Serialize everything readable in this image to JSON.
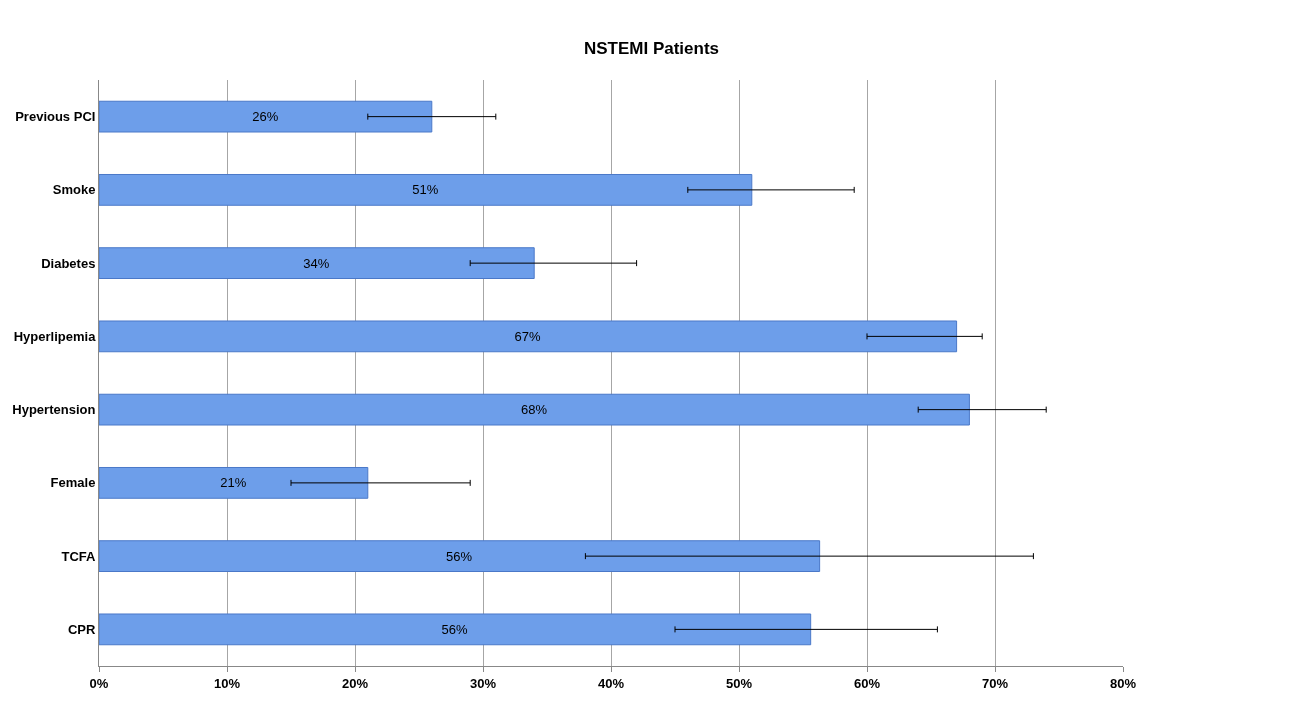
{
  "chart_data": {
    "type": "bar",
    "orientation": "horizontal",
    "title": "NSTEMI Patients",
    "categories": [
      "Previous PCI",
      "Smoke",
      "Diabetes",
      "Hyperlipemia",
      "Hypertension",
      "Female",
      "TCFA",
      "CPR"
    ],
    "values": [
      26,
      51,
      34,
      67,
      68,
      21,
      56.3,
      55.6
    ],
    "value_labels": [
      "26%",
      "51%",
      "34%",
      "67%",
      "68%",
      "21%",
      "56%",
      "56%"
    ],
    "errors": [
      [
        21,
        31
      ],
      [
        46,
        59
      ],
      [
        29,
        42
      ],
      [
        60,
        69
      ],
      [
        64,
        74
      ],
      [
        15,
        29
      ],
      [
        38,
        73
      ],
      [
        45,
        65.5
      ]
    ],
    "color": "#6d9eea",
    "xlim": [
      0,
      80
    ],
    "xticks": [
      {
        "value": 0,
        "label": "0%"
      },
      {
        "value": 10,
        "label": "10%"
      },
      {
        "value": 20,
        "label": "20%"
      },
      {
        "value": 30,
        "label": "30%"
      },
      {
        "value": 40,
        "label": "40%"
      },
      {
        "value": 50,
        "label": "50%"
      },
      {
        "value": 60,
        "label": "60%"
      },
      {
        "value": 70,
        "label": "70%"
      },
      {
        "value": 80,
        "label": "80%"
      }
    ],
    "grid": "x",
    "legend": false
  }
}
